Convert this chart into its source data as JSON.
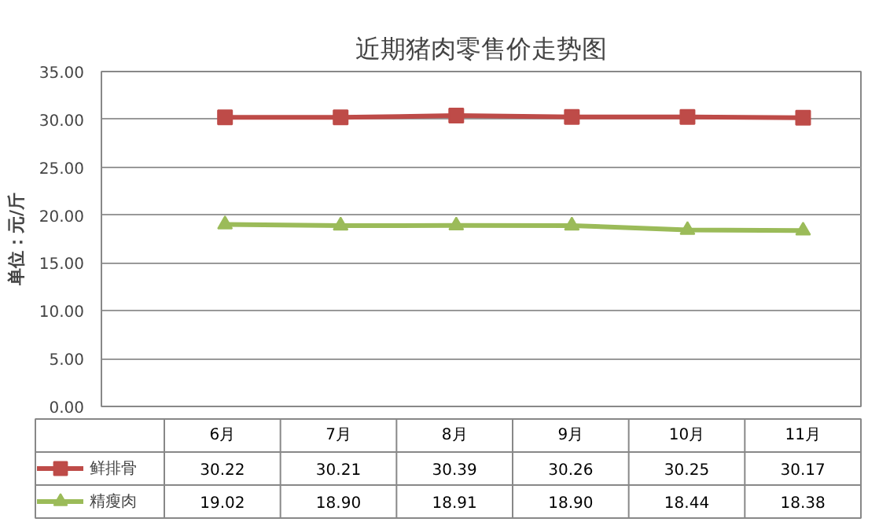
{
  "chart_data": {
    "type": "line",
    "title": "近期猪肉零售价走势图",
    "ylabel": "单位：元/斤",
    "categories": [
      "6月",
      "7月",
      "8月",
      "9月",
      "10月",
      "11月"
    ],
    "series": [
      {
        "name": "鲜排骨",
        "color": "#be4b48",
        "marker": "square",
        "values": [
          30.22,
          30.21,
          30.39,
          30.26,
          30.25,
          30.17
        ],
        "value_labels": [
          "30.22",
          "30.21",
          "30.39",
          "30.26",
          "30.25",
          "30.17"
        ]
      },
      {
        "name": "精瘦肉",
        "color": "#9bbb59",
        "marker": "triangle",
        "values": [
          19.02,
          18.9,
          18.91,
          18.9,
          18.44,
          18.38
        ],
        "value_labels": [
          "19.02",
          "18.90",
          "18.91",
          "18.90",
          "18.44",
          "18.38"
        ]
      }
    ],
    "ylim": [
      0,
      35
    ],
    "yticks": [
      {
        "value": 0,
        "label": "0.00"
      },
      {
        "value": 5,
        "label": "5.00"
      },
      {
        "value": 10,
        "label": "10.00"
      },
      {
        "value": 15,
        "label": "15.00"
      },
      {
        "value": 20,
        "label": "20.00"
      },
      {
        "value": 25,
        "label": "25.00"
      },
      {
        "value": 30,
        "label": "30.00"
      },
      {
        "value": 35,
        "label": "35.00"
      }
    ],
    "grid": "y",
    "legend": "bottom",
    "line_style": "solid"
  }
}
